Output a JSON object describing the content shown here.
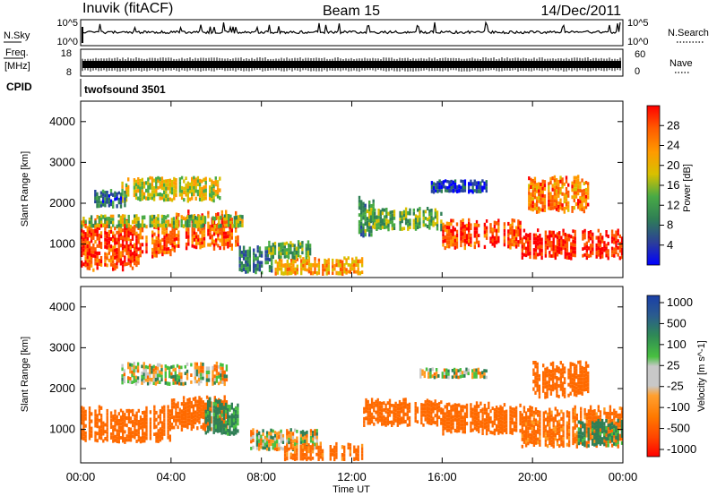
{
  "header": {
    "station": "Inuvik (fitACF)",
    "beam": "Beam 15",
    "date": "14/Dec/2011"
  },
  "panels": {
    "nsky_label": "N.Sky",
    "nsearch_label": "N.Search",
    "nsky_ticks": [
      "10^5",
      "10^0"
    ],
    "nsky_right_ticks": [
      "10^5",
      "10^0"
    ],
    "freq_label_1": "Freq.",
    "freq_label_2": "[MHz]",
    "freq_ticks": [
      "18",
      "8"
    ],
    "nave_label": "Nave",
    "nave_ticks": [
      "60",
      "0"
    ],
    "cpid_label": "CPID",
    "cpid_value": "twofsound 3501"
  },
  "colors": {
    "power_scale": [
      "#0000ff",
      "#27459c",
      "#2f7f55",
      "#48aa45",
      "#d8c000",
      "#ff9a00",
      "#ff5a00",
      "#ff0000"
    ],
    "velocity_scale": [
      "#ff0000",
      "#ff6a00",
      "#ff9a1e",
      "#c8c8c8",
      "#c8c8c8",
      "#48c040",
      "#2f7f55",
      "#1a3fa8"
    ]
  },
  "chart_data": [
    {
      "type": "heatmap",
      "title": "",
      "xlabel": "Time UT",
      "ylabel": "Slant Range [km]",
      "xlim": [
        0,
        24
      ],
      "ylim": [
        180,
        4500
      ],
      "x_tick_labels": [
        "00:00",
        "04:00",
        "08:00",
        "12:00",
        "16:00",
        "20:00",
        "00:00"
      ],
      "x_ticks": [
        0,
        4,
        8,
        12,
        16,
        20,
        24
      ],
      "y_ticks": [
        1000,
        2000,
        3000,
        4000
      ],
      "colorbar_label": "Power [dB]",
      "colorbar_ticks": [
        4,
        8,
        12,
        16,
        20,
        24,
        28
      ],
      "clim": [
        0,
        32
      ],
      "regions": [
        {
          "x0": 0.0,
          "x1": 2.6,
          "y0": 400,
          "y1": 1500,
          "value": 27
        },
        {
          "x0": 2.6,
          "x1": 4.2,
          "y0": 700,
          "y1": 1500,
          "value": 26
        },
        {
          "x0": 4.2,
          "x1": 7.0,
          "y0": 900,
          "y1": 1750,
          "value": 26
        },
        {
          "x0": 0.0,
          "x1": 7.2,
          "y0": 1400,
          "y1": 1700,
          "value": 16
        },
        {
          "x0": 1.8,
          "x1": 6.2,
          "y0": 2050,
          "y1": 2600,
          "value": 18
        },
        {
          "x0": 0.6,
          "x1": 2.0,
          "y0": 1900,
          "y1": 2300,
          "value": 8
        },
        {
          "x0": 7.0,
          "x1": 8.5,
          "y0": 300,
          "y1": 900,
          "value": 10
        },
        {
          "x0": 8.5,
          "x1": 12.5,
          "y0": 250,
          "y1": 650,
          "value": 22
        },
        {
          "x0": 8.3,
          "x1": 10.2,
          "y0": 650,
          "y1": 1050,
          "value": 14
        },
        {
          "x0": 12.2,
          "x1": 13.0,
          "y0": 1200,
          "y1": 2100,
          "value": 12
        },
        {
          "x0": 12.8,
          "x1": 16.0,
          "y0": 1350,
          "y1": 1850,
          "value": 14
        },
        {
          "x0": 16.0,
          "x1": 19.5,
          "y0": 900,
          "y1": 1550,
          "value": 27
        },
        {
          "x0": 19.5,
          "x1": 24.0,
          "y0": 650,
          "y1": 1300,
          "value": 29
        },
        {
          "x0": 19.8,
          "x1": 22.5,
          "y0": 1800,
          "y1": 2600,
          "value": 24
        },
        {
          "x0": 15.5,
          "x1": 18.0,
          "y0": 2250,
          "y1": 2550,
          "value": 6
        }
      ]
    },
    {
      "type": "heatmap",
      "title": "",
      "xlabel": "Time UT",
      "ylabel": "Slant Range [km]",
      "xlim": [
        0,
        24
      ],
      "ylim": [
        180,
        4500
      ],
      "x_tick_labels": [
        "00:00",
        "04:00",
        "08:00",
        "12:00",
        "16:00",
        "20:00",
        "00:00"
      ],
      "x_ticks": [
        0,
        4,
        8,
        12,
        16,
        20,
        24
      ],
      "y_ticks": [
        1000,
        2000,
        3000,
        4000
      ],
      "colorbar_label": "Velocity [m s^-1]",
      "colorbar_ticks": [
        "1000",
        "500",
        "100",
        "25",
        "-25",
        "-100",
        "-500",
        "-1000"
      ],
      "regions": [
        {
          "x0": 0.0,
          "x1": 4.0,
          "y0": 700,
          "y1": 1500,
          "value": -300
        },
        {
          "x0": 4.0,
          "x1": 6.5,
          "y0": 1000,
          "y1": 1750,
          "value": -250
        },
        {
          "x0": 5.5,
          "x1": 7.0,
          "y0": 900,
          "y1": 1700,
          "value": 200
        },
        {
          "x0": 1.8,
          "x1": 6.5,
          "y0": 2100,
          "y1": 2600,
          "value": 0
        },
        {
          "x0": 7.5,
          "x1": 10.5,
          "y0": 500,
          "y1": 1000,
          "value": 0
        },
        {
          "x0": 9.0,
          "x1": 12.5,
          "y0": 250,
          "y1": 650,
          "value": -200
        },
        {
          "x0": 12.5,
          "x1": 16.0,
          "y0": 1100,
          "y1": 1700,
          "value": -250
        },
        {
          "x0": 16.0,
          "x1": 19.5,
          "y0": 900,
          "y1": 1600,
          "value": -300
        },
        {
          "x0": 19.5,
          "x1": 24.0,
          "y0": 600,
          "y1": 1500,
          "value": -200
        },
        {
          "x0": 20.0,
          "x1": 22.5,
          "y0": 1800,
          "y1": 2600,
          "value": -300
        },
        {
          "x0": 22.0,
          "x1": 24.0,
          "y0": 600,
          "y1": 1200,
          "value": 200
        },
        {
          "x0": 15.0,
          "x1": 18.0,
          "y0": 2250,
          "y1": 2500,
          "value": 0
        }
      ]
    }
  ]
}
